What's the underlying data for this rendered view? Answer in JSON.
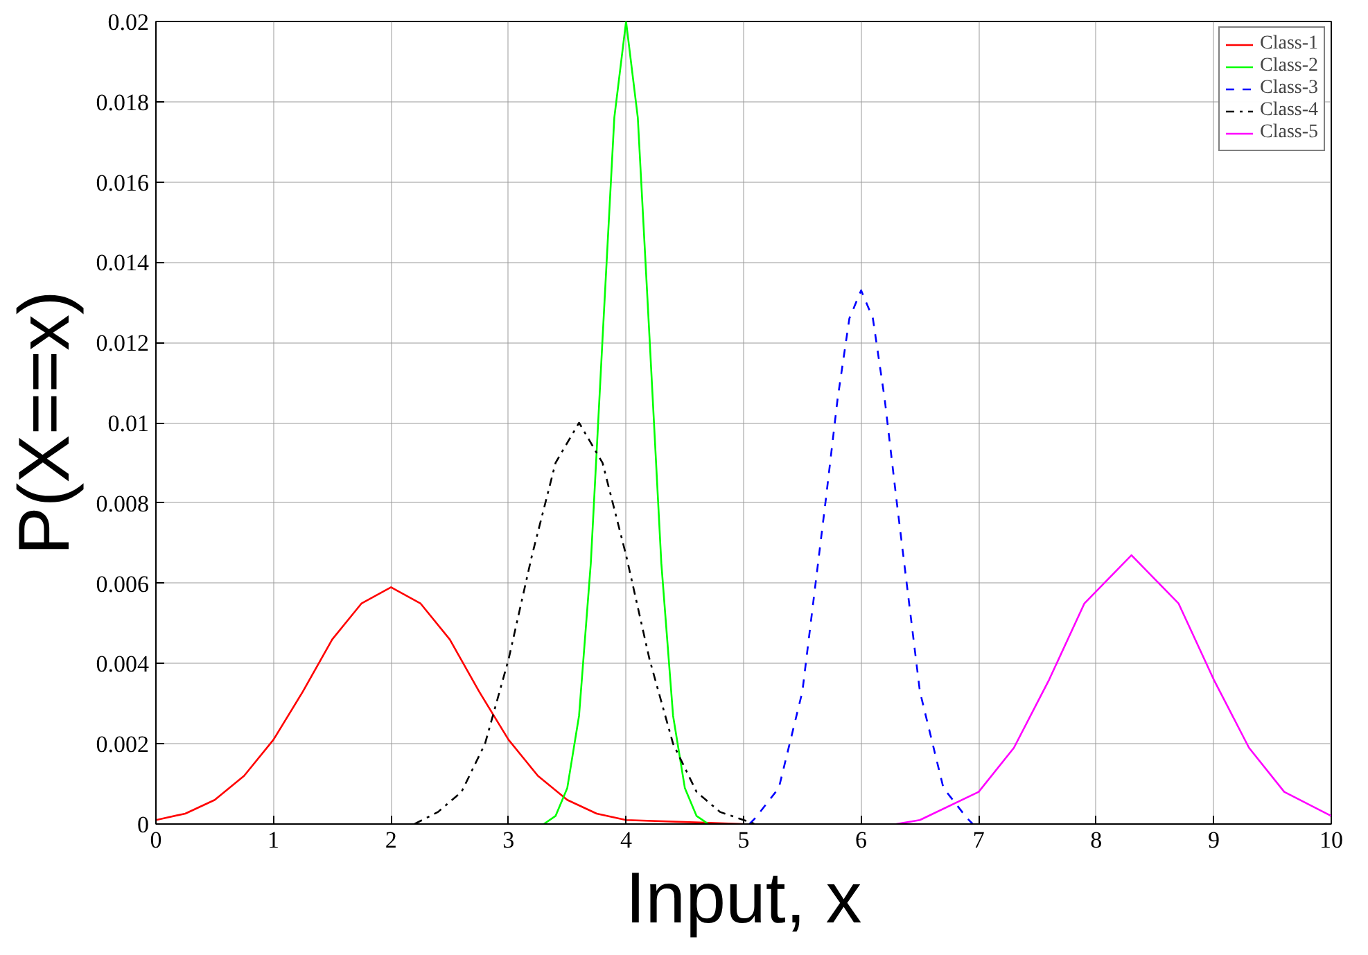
{
  "chart_data": {
    "type": "line",
    "xlabel": "Input, x",
    "ylabel": "P(X==x)",
    "xlim": [
      0,
      10
    ],
    "xticks": [
      0,
      1,
      2,
      3,
      4,
      5,
      6,
      7,
      8,
      9,
      10
    ],
    "ylim": [
      0,
      0.02
    ],
    "yticks": [
      0,
      0.002,
      0.004,
      0.006,
      0.008,
      0.01,
      0.012,
      0.014,
      0.016,
      0.018,
      0.02
    ],
    "grid": true,
    "legend": "top right",
    "series": [
      {
        "name": "Class-1",
        "color": "#ff0000",
        "line_style": "solid",
        "x": [
          0,
          0.25,
          0.5,
          0.75,
          1,
          1.25,
          1.5,
          1.75,
          2,
          2.25,
          2.5,
          2.75,
          3,
          3.25,
          3.5,
          3.75,
          4,
          5
        ],
        "values": [
          0.0001,
          0.00026,
          0.0006,
          0.0012,
          0.0021,
          0.0033,
          0.0046,
          0.0055,
          0.0059,
          0.0055,
          0.0046,
          0.0033,
          0.0021,
          0.0012,
          0.0006,
          0.00026,
          0.0001,
          0
        ]
      },
      {
        "name": "Class-2",
        "color": "#00ff00",
        "line_style": "solid",
        "x": [
          3.3,
          3.4,
          3.5,
          3.6,
          3.7,
          3.8,
          3.9,
          4,
          4.1,
          4.2,
          4.3,
          4.4,
          4.5,
          4.6,
          4.7
        ],
        "values": [
          0,
          0.0002,
          0.0009,
          0.0027,
          0.0065,
          0.0121,
          0.0176,
          0.02,
          0.0176,
          0.0121,
          0.0065,
          0.0027,
          0.0009,
          0.0002,
          0
        ]
      },
      {
        "name": "Class-3",
        "color": "#0000ff",
        "line_style": "dashed",
        "x": [
          5.05,
          5.1,
          5.3,
          5.5,
          5.7,
          5.8,
          5.9,
          6,
          6.1,
          6.2,
          6.3,
          6.5,
          6.7,
          6.9,
          6.95
        ],
        "values": [
          0,
          0.00015,
          0.0009,
          0.0033,
          0.0081,
          0.0106,
          0.0126,
          0.0133,
          0.0126,
          0.0106,
          0.0081,
          0.0033,
          0.0009,
          0.00015,
          0
        ]
      },
      {
        "name": "Class-4",
        "color": "#000000",
        "line_style": "dashdot",
        "x": [
          2.2,
          2.4,
          2.6,
          2.8,
          3.0,
          3.2,
          3.4,
          3.6,
          3.8,
          4.0,
          4.2,
          4.4,
          4.6,
          4.8,
          5.0,
          5.1
        ],
        "values": [
          0,
          0.0003,
          0.0008,
          0.002,
          0.0041,
          0.0067,
          0.009,
          0.01,
          0.009,
          0.0067,
          0.0041,
          0.002,
          0.0008,
          0.0003,
          0.0001,
          0
        ]
      },
      {
        "name": "Class-5",
        "color": "#ff00ff",
        "line_style": "solid",
        "x": [
          6.3,
          6.5,
          7.0,
          7.3,
          7.6,
          7.9,
          8.3,
          8.7,
          9.0,
          9.3,
          9.6,
          10
        ],
        "values": [
          0,
          0.0001,
          0.0008,
          0.0019,
          0.0036,
          0.0055,
          0.0067,
          0.0055,
          0.0036,
          0.0019,
          0.0008,
          0.0002
        ]
      }
    ]
  }
}
